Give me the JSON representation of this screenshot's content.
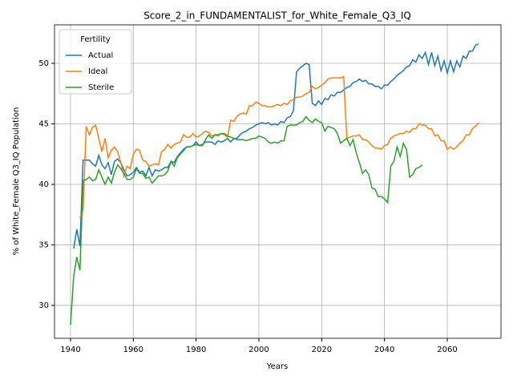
{
  "chart_data": {
    "type": "line",
    "title": "Score_2_in_FUNDAMENTALIST_for_White_Female_Q3_IQ",
    "x_label": "Years",
    "y_label": "% of White_Female Q3_IQ Population",
    "legend_title": "Fertility",
    "legend_position": "upper left",
    "grid": true,
    "xlim": [
      1934.9,
      2077.1
    ],
    "ylim": [
      27.28,
      53.18
    ],
    "xticks": [
      1940,
      1960,
      1980,
      2000,
      2020,
      2040,
      2060
    ],
    "yticks": [
      30,
      35,
      40,
      45,
      50
    ],
    "x": [
      1940,
      1941,
      1942,
      1943,
      1944,
      1945,
      1946,
      1947,
      1948,
      1949,
      1950,
      1951,
      1952,
      1953,
      1954,
      1955,
      1956,
      1957,
      1958,
      1959,
      1960,
      1961,
      1962,
      1963,
      1964,
      1965,
      1966,
      1967,
      1968,
      1969,
      1970,
      1971,
      1972,
      1973,
      1974,
      1975,
      1976,
      1977,
      1978,
      1979,
      1980,
      1981,
      1982,
      1983,
      1984,
      1985,
      1986,
      1987,
      1988,
      1989,
      1990,
      1991,
      1992,
      1993,
      1994,
      1995,
      1996,
      1997,
      1998,
      1999,
      2000,
      2001,
      2002,
      2003,
      2004,
      2005,
      2006,
      2007,
      2008,
      2009,
      2010,
      2011,
      2012,
      2013,
      2014,
      2015,
      2016,
      2017,
      2018,
      2019,
      2020,
      2021,
      2022,
      2023,
      2024,
      2025,
      2026,
      2027,
      2028,
      2029,
      2030,
      2031,
      2032,
      2033,
      2034,
      2035,
      2036,
      2037,
      2038,
      2039,
      2040,
      2041,
      2042,
      2043,
      2044,
      2045,
      2046,
      2047,
      2048,
      2049,
      2050,
      2051,
      2052,
      2053,
      2054,
      2055,
      2056,
      2057,
      2058,
      2059,
      2060,
      2061,
      2062,
      2063,
      2064,
      2065,
      2066,
      2067,
      2068,
      2069,
      2070
    ],
    "series": [
      {
        "name": "Actual",
        "color": "#1f77b4",
        "values": [
          null,
          34.7,
          36.3,
          34.9,
          42.0,
          42.0,
          42.0,
          41.7,
          41.5,
          42.4,
          41.6,
          41.3,
          41.8,
          40.8,
          41.9,
          42.1,
          41.8,
          41.2,
          40.7,
          40.8,
          41.0,
          41.4,
          41.0,
          41.1,
          40.7,
          41.4,
          40.7,
          41.2,
          41.1,
          41.2,
          41.4,
          41.4,
          41.9,
          41.8,
          42.3,
          42.6,
          42.9,
          43.1,
          43.1,
          43.2,
          43.5,
          43.2,
          43.3,
          43.5,
          43.5,
          43.5,
          43.3,
          43.6,
          43.5,
          43.6,
          43.8,
          43.5,
          43.8,
          43.8,
          44.1,
          44.3,
          44.4,
          44.6,
          44.7,
          44.9,
          45.0,
          45.1,
          45.0,
          45.1,
          44.9,
          45.0,
          44.9,
          45.2,
          45.1,
          45.5,
          45.6,
          46.1,
          49.3,
          49.6,
          49.8,
          50.0,
          49.9,
          46.7,
          46.5,
          46.9,
          46.6,
          47.1,
          47.0,
          47.4,
          47.3,
          47.6,
          47.6,
          47.8,
          48.0,
          48.1,
          48.4,
          48.5,
          48.7,
          48.5,
          48.6,
          48.3,
          48.3,
          48.1,
          48.1,
          47.9,
          48.2,
          48.2,
          48.5,
          48.7,
          49.0,
          49.2,
          49.4,
          49.7,
          49.8,
          50.3,
          50.1,
          50.7,
          50.4,
          50.9,
          49.9,
          50.9,
          49.8,
          50.6,
          49.4,
          50.2,
          49.2,
          50.2,
          49.3,
          50.2,
          49.7,
          50.6,
          50.4,
          51.0,
          51.0,
          51.5,
          51.6
        ]
      },
      {
        "name": "Ideal",
        "color": "#ff7f0e",
        "values": [
          null,
          null,
          null,
          37.2,
          37.9,
          44.8,
          44.1,
          44.7,
          44.9,
          43.8,
          42.7,
          43.8,
          42.2,
          42.8,
          43.1,
          42.7,
          41.8,
          40.7,
          41.5,
          41.3,
          42.5,
          42.9,
          42.8,
          42.0,
          41.9,
          41.5,
          41.6,
          41.7,
          41.6,
          42.7,
          42.9,
          43.3,
          43.0,
          43.3,
          43.4,
          43.5,
          44.1,
          43.9,
          43.9,
          44.2,
          43.9,
          44.0,
          44.2,
          44.4,
          44.3,
          44.0,
          44.1,
          44.0,
          44.2,
          44.1,
          43.9,
          45.3,
          45.2,
          45.6,
          45.8,
          45.9,
          45.8,
          46.5,
          46.5,
          46.8,
          46.7,
          46.5,
          46.5,
          46.4,
          46.4,
          46.5,
          46.6,
          46.5,
          46.7,
          46.6,
          46.9,
          47.0,
          47.2,
          47.2,
          47.3,
          47.5,
          47.6,
          48.1,
          47.9,
          48.0,
          48.2,
          48.4,
          48.7,
          48.8,
          48.8,
          48.8,
          48.8,
          48.9,
          43.8,
          43.9,
          44.0,
          44.0,
          44.1,
          43.7,
          43.7,
          43.5,
          43.2,
          43.0,
          43.0,
          42.9,
          43.2,
          43.3,
          43.8,
          44.0,
          44.1,
          44.2,
          44.2,
          44.4,
          44.3,
          44.6,
          44.6,
          45.0,
          44.9,
          44.9,
          44.6,
          44.6,
          44.0,
          44.1,
          43.6,
          43.6,
          42.9,
          43.1,
          42.9,
          43.1,
          43.4,
          43.6,
          44.1,
          44.1,
          44.6,
          44.8,
          45.1
        ]
      },
      {
        "name": "Sterile",
        "color": "#2ca02c",
        "values": [
          28.4,
          32.4,
          34.0,
          32.9,
          40.3,
          40.4,
          40.6,
          40.3,
          40.4,
          41.2,
          40.6,
          40.0,
          40.6,
          40.1,
          41.0,
          41.6,
          41.3,
          40.9,
          40.4,
          40.4,
          40.6,
          41.3,
          40.9,
          40.9,
          40.5,
          40.6,
          40.1,
          40.4,
          40.7,
          40.7,
          40.8,
          41.1,
          41.9,
          41.5,
          42.2,
          42.5,
          42.8,
          43.1,
          43.1,
          43.2,
          43.3,
          43.2,
          43.2,
          43.7,
          44.1,
          43.8,
          44.1,
          44.1,
          44.2,
          44.2,
          44.0,
          43.9,
          43.8,
          43.7,
          43.7,
          43.7,
          43.6,
          43.7,
          43.8,
          43.8,
          44.0,
          43.9,
          43.8,
          43.5,
          43.4,
          43.5,
          43.4,
          43.6,
          43.6,
          44.8,
          44.9,
          44.9,
          44.9,
          45.1,
          45.2,
          45.6,
          45.3,
          45.1,
          45.4,
          45.2,
          45.1,
          44.4,
          44.8,
          44.7,
          44.6,
          44.2,
          43.4,
          43.6,
          43.8,
          43.2,
          43.7,
          42.6,
          41.8,
          40.9,
          41.2,
          40.8,
          39.7,
          39.6,
          39.0,
          39.0,
          38.8,
          38.5,
          41.5,
          41.9,
          43.1,
          42.3,
          43.4,
          42.9,
          40.6,
          40.8,
          41.3,
          41.4,
          41.6,
          null,
          null,
          null,
          null,
          null,
          null,
          null,
          null,
          null,
          null,
          null,
          null,
          null,
          null,
          null,
          null,
          null,
          null
        ]
      }
    ]
  }
}
